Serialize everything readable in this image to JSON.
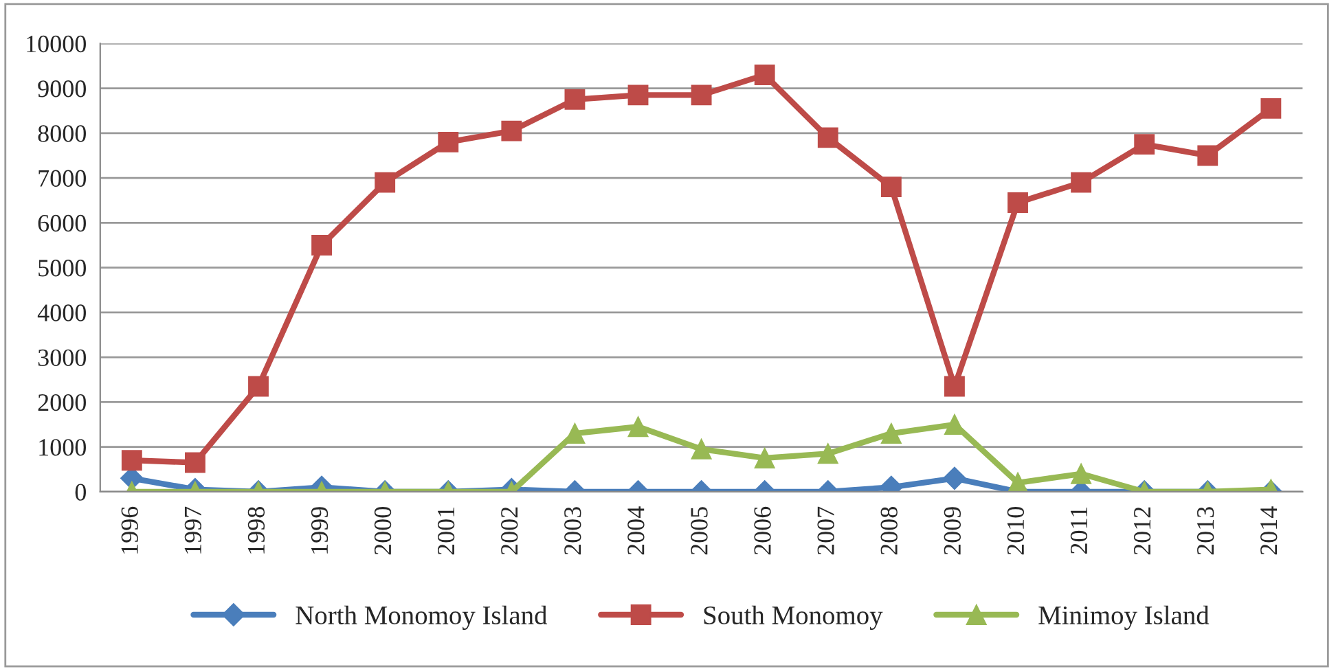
{
  "chart_data": {
    "type": "line",
    "categories": [
      "1996",
      "1997",
      "1998",
      "1999",
      "2000",
      "2001",
      "2002",
      "2003",
      "2004",
      "2005",
      "2006",
      "2007",
      "2008",
      "2009",
      "2010",
      "2011",
      "2012",
      "2013",
      "2014"
    ],
    "series": [
      {
        "name": "North Monomoy Island",
        "color": "#4a7ebb",
        "marker": "diamond",
        "values": [
          300,
          50,
          0,
          100,
          0,
          0,
          50,
          0,
          0,
          0,
          0,
          0,
          100,
          300,
          0,
          0,
          0,
          0,
          0
        ]
      },
      {
        "name": "South Monomoy",
        "color": "#be4b48",
        "marker": "square",
        "values": [
          700,
          650,
          2350,
          5500,
          6900,
          7800,
          8050,
          8750,
          8850,
          8850,
          9300,
          7900,
          6800,
          2350,
          6450,
          6900,
          7750,
          7500,
          8550
        ]
      },
      {
        "name": "Minimoy Island",
        "color": "#98b954",
        "marker": "triangle",
        "values": [
          0,
          0,
          0,
          0,
          0,
          0,
          0,
          1300,
          1450,
          950,
          750,
          850,
          1300,
          1500,
          200,
          400,
          0,
          0,
          50
        ]
      }
    ],
    "ylim": [
      0,
      10000
    ],
    "yticks": [
      0,
      1000,
      2000,
      3000,
      4000,
      5000,
      6000,
      7000,
      8000,
      9000,
      10000
    ],
    "grid": "y",
    "legend": "bottom",
    "line_style": "solid"
  }
}
